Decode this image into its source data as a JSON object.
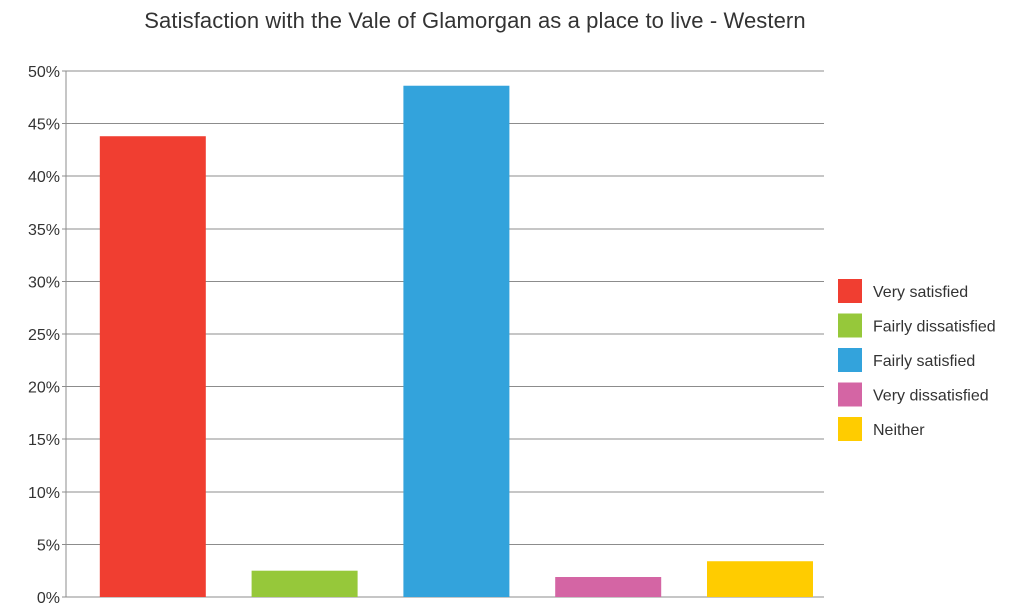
{
  "chart_data": {
    "type": "bar",
    "title": "Satisfaction with the Vale of Glamorgan as a place to live - Western",
    "xlabel": "",
    "ylabel": "",
    "ylim": [
      0,
      50
    ],
    "y_ticks": [
      "0%",
      "5%",
      "10%",
      "15%",
      "20%",
      "25%",
      "30%",
      "35%",
      "40%",
      "45%",
      "50%"
    ],
    "categories": [
      "Very satisfied",
      "Fairly dissatisfied",
      "Fairly satisfied",
      "Very dissatisfied",
      "Neither"
    ],
    "values": [
      43.8,
      2.5,
      48.6,
      1.9,
      3.4
    ],
    "colors": [
      "#f03e31",
      "#96c83a",
      "#33a3dc",
      "#d465a4",
      "#ffcc00"
    ],
    "grid": true,
    "legend_position": "right"
  }
}
